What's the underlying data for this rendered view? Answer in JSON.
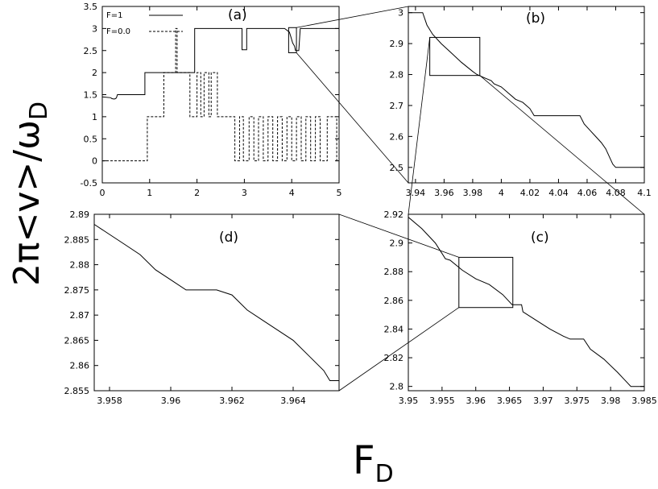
{
  "figure": {
    "ylabel_main": "2π<v>/ω",
    "ylabel_sub": "D",
    "xlabel_main": "F",
    "xlabel_sub": "D"
  },
  "chart_data": [
    {
      "panel": "a",
      "type": "line",
      "label": "(a)",
      "xlim": [
        0,
        5
      ],
      "ylim": [
        -0.5,
        3.5
      ],
      "xticks": [
        0,
        1,
        2,
        3,
        4,
        5
      ],
      "yticks": [
        -0.5,
        0,
        0.5,
        1,
        1.5,
        2,
        2.5,
        3,
        3.5
      ],
      "legend_position": "top-left",
      "grid": false,
      "series": [
        {
          "name": "F=1",
          "style": "solid",
          "x": [
            0,
            0.18,
            0.2,
            0.25,
            0.28,
            0.3,
            0.32,
            0.9,
            0.9,
            1.95,
            1.95,
            2.95,
            2.95,
            3.05,
            3.05,
            3.15,
            3.15,
            3.85,
            3.85,
            3.95,
            3.98,
            4.02,
            4.06,
            4.08,
            4.1,
            4.15,
            4.18,
            5
          ],
          "y": [
            1.45,
            1.43,
            1.41,
            1.4,
            1.41,
            1.43,
            1.5,
            1.5,
            2.0,
            2.0,
            3.0,
            3.0,
            2.52,
            2.52,
            3.0,
            3.0,
            3.0,
            3.0,
            3.0,
            2.92,
            2.82,
            2.67,
            2.6,
            2.5,
            2.5,
            2.5,
            3.0,
            3.0
          ]
        },
        {
          "name": "F=0.0",
          "style": "dashed",
          "x": [
            0,
            0.95,
            0.95,
            1.3,
            1.3,
            1.55,
            1.55,
            1.58,
            1.58,
            1.85,
            1.85,
            2.0,
            2.0,
            2.08,
            2.08,
            2.15,
            2.15,
            2.25,
            2.25,
            2.3,
            2.3,
            2.43,
            2.43,
            2.5,
            2.5,
            2.8,
            2.8,
            2.9,
            2.9,
            2.98,
            2.98,
            3.1,
            3.1,
            3.2,
            3.2,
            3.3,
            3.3,
            3.4,
            3.4,
            3.5,
            3.5,
            3.6,
            3.6,
            3.7,
            3.7,
            3.8,
            3.8,
            3.9,
            3.9,
            4.0,
            4.0,
            4.1,
            4.1,
            4.2,
            4.2,
            4.3,
            4.3,
            4.4,
            4.4,
            4.5,
            4.5,
            4.6,
            4.6,
            4.75,
            4.75,
            4.95,
            4.95,
            5
          ],
          "y": [
            0,
            0,
            1,
            1,
            2,
            2,
            3,
            3,
            2,
            2,
            1,
            1,
            2,
            2,
            1,
            1,
            2,
            2,
            1,
            1,
            2,
            2,
            1,
            1,
            1,
            1,
            0,
            0,
            1,
            1,
            0,
            0,
            1,
            1,
            0,
            0,
            1,
            1,
            0,
            0,
            1,
            1,
            0,
            0,
            1,
            1,
            0,
            0,
            1,
            1,
            0,
            0,
            1,
            1,
            0,
            0,
            1,
            1,
            0,
            0,
            1,
            1,
            0,
            0,
            1,
            1,
            0,
            0
          ]
        }
      ]
    },
    {
      "panel": "b",
      "type": "line",
      "label": "(b)",
      "xlim": [
        3.935,
        4.1
      ],
      "ylim": [
        2.45,
        3.02
      ],
      "xticks": [
        3.94,
        3.96,
        3.98,
        4,
        4.02,
        4.04,
        4.06,
        4.08,
        4.1
      ],
      "yticks": [
        2.5,
        2.6,
        2.7,
        2.8,
        2.9,
        3
      ],
      "grid": false,
      "series": [
        {
          "name": "",
          "x": [
            3.935,
            3.945,
            3.948,
            3.952,
            3.958,
            3.965,
            3.972,
            3.98,
            3.983,
            3.988,
            3.993,
            3.995,
            4.0,
            4.005,
            4.01,
            4.015,
            4.02,
            4.023,
            4.055,
            4.058,
            4.062,
            4.066,
            4.07,
            4.073,
            4.076,
            4.078,
            4.08,
            4.1
          ],
          "y": [
            3.0,
            3.0,
            2.96,
            2.93,
            2.9,
            2.87,
            2.84,
            2.81,
            2.8,
            2.79,
            2.78,
            2.77,
            2.76,
            2.74,
            2.72,
            2.71,
            2.69,
            2.667,
            2.667,
            2.64,
            2.62,
            2.6,
            2.58,
            2.56,
            2.53,
            2.51,
            2.5,
            2.5
          ]
        }
      ]
    },
    {
      "panel": "c",
      "type": "line",
      "label": "(c)",
      "xlim": [
        3.95,
        3.985
      ],
      "ylim": [
        2.797,
        2.92
      ],
      "xticks": [
        3.95,
        3.955,
        3.96,
        3.965,
        3.97,
        3.975,
        3.98,
        3.985
      ],
      "yticks": [
        2.8,
        2.82,
        2.84,
        2.86,
        2.88,
        2.9,
        2.92
      ],
      "grid": false,
      "series": [
        {
          "name": "",
          "x": [
            3.95,
            3.952,
            3.954,
            3.9555,
            3.9562,
            3.958,
            3.96,
            3.962,
            3.964,
            3.9654,
            3.9655,
            3.9668,
            3.967,
            3.969,
            3.971,
            3.973,
            3.974,
            3.976,
            3.977,
            3.979,
            3.981,
            3.982,
            3.983,
            3.985
          ],
          "y": [
            2.918,
            2.91,
            2.9,
            2.889,
            2.888,
            2.881,
            2.875,
            2.871,
            2.864,
            2.857,
            2.857,
            2.857,
            2.852,
            2.846,
            2.84,
            2.835,
            2.833,
            2.833,
            2.826,
            2.819,
            2.81,
            2.805,
            2.8,
            2.8
          ]
        }
      ]
    },
    {
      "panel": "d",
      "type": "line",
      "label": "(d)",
      "xlim": [
        3.9575,
        3.9655
      ],
      "ylim": [
        2.855,
        2.89
      ],
      "xticks": [
        3.958,
        3.96,
        3.962,
        3.964
      ],
      "yticks": [
        2.855,
        2.86,
        2.865,
        2.87,
        2.875,
        2.88,
        2.885,
        2.89
      ],
      "grid": false,
      "series": [
        {
          "name": "",
          "x": [
            3.9575,
            3.958,
            3.9585,
            3.959,
            3.9595,
            3.96,
            3.9605,
            3.9615,
            3.962,
            3.9625,
            3.963,
            3.9635,
            3.964,
            3.9645,
            3.965,
            3.9652,
            3.9653,
            3.9655
          ],
          "y": [
            2.888,
            2.886,
            2.884,
            2.882,
            2.879,
            2.877,
            2.875,
            2.875,
            2.874,
            2.871,
            2.869,
            2.867,
            2.865,
            2.862,
            2.859,
            2.857,
            2.857,
            2.857
          ]
        }
      ]
    }
  ]
}
